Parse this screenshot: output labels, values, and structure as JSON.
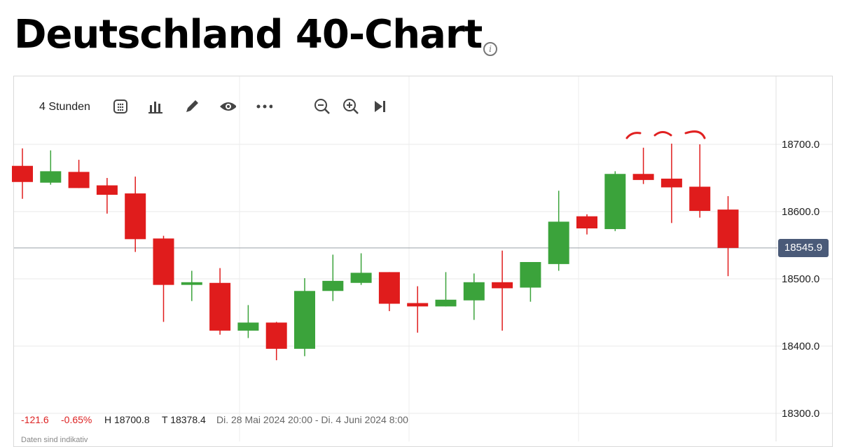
{
  "header": {
    "title": "Deutschland 40-Chart",
    "info_icon": "info-icon"
  },
  "toolbar": {
    "timeframe_label": "4 Stunden",
    "icons": [
      "calendar-grid-icon",
      "bar-chart-icon",
      "pencil-icon",
      "eye-icon",
      "more-icon",
      "zoom-out-icon",
      "zoom-in-icon",
      "skip-to-end-icon"
    ]
  },
  "current_price": "18545.9",
  "footer": {
    "change": "-121.6",
    "change_pct": "-0.65%",
    "high": "H 18700.8",
    "low": "T 18378.4",
    "range": "Di. 28 Mai 2024 20:00 - Di. 4 Juni 2024 8:00",
    "note": "Daten sind indikativ"
  },
  "colors": {
    "up": "#3ba33b",
    "down": "#e01c1c",
    "badge": "#4a5a78"
  },
  "chart_data": {
    "type": "candlestick",
    "y_ticks": [
      "18700.0",
      "18600.0",
      "18500.0",
      "18400.0",
      "18300.0"
    ],
    "ylim": [
      18290,
      18780
    ],
    "current_price": 18545.9,
    "high": 18700.8,
    "low": 18378.4,
    "candles": [
      {
        "o": 18668,
        "h": 18694,
        "l": 18619,
        "c": 18644
      },
      {
        "o": 18643,
        "h": 18691,
        "l": 18640,
        "c": 18660
      },
      {
        "o": 18659,
        "h": 18677,
        "l": 18635,
        "c": 18635
      },
      {
        "o": 18639,
        "h": 18650,
        "l": 18597,
        "c": 18625
      },
      {
        "o": 18627,
        "h": 18652,
        "l": 18540,
        "c": 18559
      },
      {
        "o": 18560,
        "h": 18564,
        "l": 18436,
        "c": 18491
      },
      {
        "o": 18491,
        "h": 18512,
        "l": 18467,
        "c": 18495
      },
      {
        "o": 18494,
        "h": 18516,
        "l": 18417,
        "c": 18423
      },
      {
        "o": 18423,
        "h": 18461,
        "l": 18412,
        "c": 18435
      },
      {
        "o": 18435,
        "h": 18436,
        "l": 18379,
        "c": 18396
      },
      {
        "o": 18396,
        "h": 18501,
        "l": 18385,
        "c": 18482
      },
      {
        "o": 18482,
        "h": 18536,
        "l": 18467,
        "c": 18497
      },
      {
        "o": 18494,
        "h": 18538,
        "l": 18491,
        "c": 18509
      },
      {
        "o": 18510,
        "h": 18510,
        "l": 18452,
        "c": 18463
      },
      {
        "o": 18464,
        "h": 18489,
        "l": 18420,
        "c": 18459
      },
      {
        "o": 18459,
        "h": 18510,
        "l": 18459,
        "c": 18469
      },
      {
        "o": 18468,
        "h": 18508,
        "l": 18439,
        "c": 18495
      },
      {
        "o": 18495,
        "h": 18542,
        "l": 18423,
        "c": 18486
      },
      {
        "o": 18487,
        "h": 18525,
        "l": 18466,
        "c": 18525
      },
      {
        "o": 18522,
        "h": 18631,
        "l": 18512,
        "c": 18585
      },
      {
        "o": 18593,
        "h": 18596,
        "l": 18566,
        "c": 18575
      },
      {
        "o": 18574,
        "h": 18660,
        "l": 18571,
        "c": 18656
      },
      {
        "o": 18656,
        "h": 18695,
        "l": 18641,
        "c": 18647
      },
      {
        "o": 18649,
        "h": 18701,
        "l": 18583,
        "c": 18636
      },
      {
        "o": 18637,
        "h": 18700,
        "l": 18591,
        "c": 18601
      },
      {
        "o": 18603,
        "h": 18623,
        "l": 18504,
        "c": 18546
      }
    ]
  }
}
